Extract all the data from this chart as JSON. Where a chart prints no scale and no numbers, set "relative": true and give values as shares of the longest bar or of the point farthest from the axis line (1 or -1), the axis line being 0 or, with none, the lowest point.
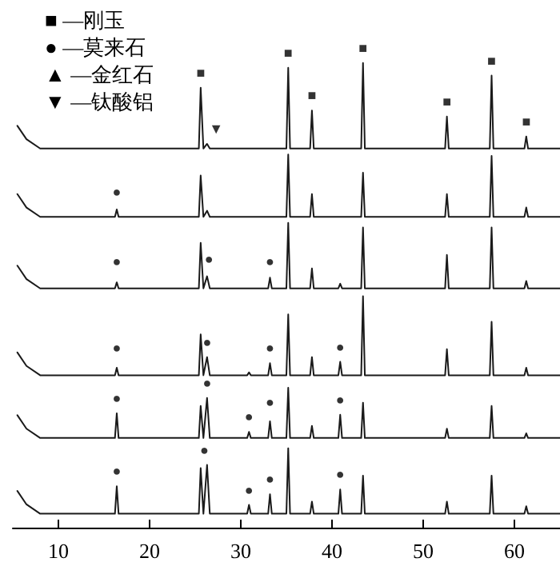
{
  "chart_data": {
    "type": "line",
    "relative": true,
    "grid": false,
    "marker": "none",
    "line_style": "solid",
    "xlim": [
      5,
      65
    ],
    "xticks": [
      10,
      20,
      30,
      40,
      50,
      60
    ],
    "x": [
      5.5,
      6.5,
      8,
      16.2,
      16.4,
      16.6,
      25.4,
      25.6,
      25.9,
      26.3,
      26.6,
      30.7,
      30.9,
      31.1,
      33.0,
      33.2,
      33.4,
      35.0,
      35.2,
      35.4,
      37.6,
      37.8,
      38.0,
      40.7,
      40.9,
      41.1,
      43.2,
      43.4,
      43.6,
      52.4,
      52.6,
      52.8,
      57.3,
      57.5,
      57.7,
      61.1,
      61.3,
      61.5,
      65
    ],
    "series": [
      {
        "color": "#1a1a1a",
        "values": [
          0.865,
          0.836,
          0.816,
          0.816,
          0.816,
          0.816,
          0.816,
          0.947,
          0.816,
          0.826,
          0.816,
          0.816,
          0.816,
          0.816,
          0.816,
          0.816,
          0.816,
          0.816,
          0.99,
          0.816,
          0.816,
          0.898,
          0.816,
          0.816,
          0.816,
          0.816,
          0.816,
          1.0,
          0.816,
          0.816,
          0.885,
          0.816,
          0.816,
          0.973,
          0.816,
          0.816,
          0.842,
          0.816,
          0.816
        ]
      },
      {
        "color": "#1a1a1a",
        "values": [
          0.718,
          0.689,
          0.669,
          0.669,
          0.685,
          0.669,
          0.669,
          0.758,
          0.669,
          0.682,
          0.669,
          0.669,
          0.669,
          0.669,
          0.669,
          0.669,
          0.669,
          0.669,
          0.803,
          0.669,
          0.669,
          0.718,
          0.669,
          0.669,
          0.669,
          0.669,
          0.669,
          0.764,
          0.669,
          0.669,
          0.718,
          0.669,
          0.669,
          0.8,
          0.669,
          0.669,
          0.689,
          0.669,
          0.669
        ]
      },
      {
        "color": "#1a1a1a",
        "values": [
          0.564,
          0.535,
          0.515,
          0.515,
          0.528,
          0.515,
          0.515,
          0.613,
          0.515,
          0.541,
          0.515,
          0.515,
          0.515,
          0.515,
          0.515,
          0.538,
          0.515,
          0.515,
          0.656,
          0.515,
          0.515,
          0.558,
          0.515,
          0.515,
          0.525,
          0.515,
          0.515,
          0.646,
          0.515,
          0.515,
          0.587,
          0.515,
          0.515,
          0.646,
          0.515,
          0.515,
          0.531,
          0.515,
          0.515
        ]
      },
      {
        "color": "#1a1a1a",
        "values": [
          0.377,
          0.348,
          0.328,
          0.328,
          0.344,
          0.328,
          0.328,
          0.416,
          0.328,
          0.367,
          0.328,
          0.328,
          0.334,
          0.328,
          0.328,
          0.354,
          0.328,
          0.328,
          0.459,
          0.328,
          0.328,
          0.367,
          0.328,
          0.328,
          0.357,
          0.328,
          0.328,
          0.498,
          0.328,
          0.328,
          0.384,
          0.328,
          0.328,
          0.443,
          0.328,
          0.328,
          0.344,
          0.328,
          0.328
        ]
      },
      {
        "color": "#1a1a1a",
        "values": [
          0.242,
          0.213,
          0.193,
          0.193,
          0.246,
          0.193,
          0.193,
          0.262,
          0.193,
          0.279,
          0.193,
          0.193,
          0.206,
          0.193,
          0.193,
          0.229,
          0.193,
          0.193,
          0.301,
          0.193,
          0.193,
          0.219,
          0.193,
          0.193,
          0.243,
          0.193,
          0.193,
          0.269,
          0.193,
          0.193,
          0.213,
          0.193,
          0.193,
          0.262,
          0.193,
          0.193,
          0.203,
          0.193,
          0.193
        ]
      },
      {
        "color": "#1a1a1a",
        "values": [
          0.079,
          0.05,
          0.03,
          0.03,
          0.089,
          0.03,
          0.03,
          0.128,
          0.03,
          0.135,
          0.03,
          0.03,
          0.049,
          0.03,
          0.03,
          0.072,
          0.03,
          0.03,
          0.171,
          0.03,
          0.03,
          0.056,
          0.03,
          0.03,
          0.082,
          0.03,
          0.03,
          0.112,
          0.03,
          0.03,
          0.056,
          0.03,
          0.03,
          0.112,
          0.03,
          0.03,
          0.046,
          0.03,
          0.03
        ]
      }
    ],
    "annotations": [
      "■ —刚玉",
      "● —莫来石",
      "▲ —金红石",
      "▼ —钛酸铝",
      {
        "text": "■",
        "x": 25.6,
        "y": 0.947
      },
      {
        "text": "■",
        "x": 35.2,
        "y": 0.99
      },
      {
        "text": "■",
        "x": 37.8,
        "y": 0.898
      },
      {
        "text": "■",
        "x": 43.4,
        "y": 1.0
      },
      {
        "text": "■",
        "x": 52.6,
        "y": 0.885
      },
      {
        "text": "■",
        "x": 57.5,
        "y": 0.973
      },
      {
        "text": "■",
        "x": 61.3,
        "y": 0.842
      },
      {
        "text": "▼",
        "x": 27.3,
        "y": 0.826
      },
      {
        "text": "●",
        "x": 16.4,
        "y": 0.69
      },
      {
        "text": "●",
        "x": 16.4,
        "y": 0.54
      },
      {
        "text": "●",
        "x": 26.5,
        "y": 0.545
      },
      {
        "text": "●",
        "x": 33.2,
        "y": 0.54
      },
      {
        "text": "●",
        "x": 16.4,
        "y": 0.355
      },
      {
        "text": "●",
        "x": 26.3,
        "y": 0.367
      },
      {
        "text": "●",
        "x": 33.2,
        "y": 0.354
      },
      {
        "text": "●",
        "x": 40.9,
        "y": 0.357
      },
      {
        "text": "●",
        "x": 16.4,
        "y": 0.246
      },
      {
        "text": "●",
        "x": 26.3,
        "y": 0.279
      },
      {
        "text": "●",
        "x": 30.9,
        "y": 0.206
      },
      {
        "text": "●",
        "x": 33.2,
        "y": 0.238
      },
      {
        "text": "●",
        "x": 40.9,
        "y": 0.243
      },
      {
        "text": "●",
        "x": 16.4,
        "y": 0.089
      },
      {
        "text": "●",
        "x": 26.0,
        "y": 0.135
      },
      {
        "text": "●",
        "x": 30.9,
        "y": 0.049
      },
      {
        "text": "●",
        "x": 33.2,
        "y": 0.072
      },
      {
        "text": "●",
        "x": 40.9,
        "y": 0.082
      }
    ]
  }
}
